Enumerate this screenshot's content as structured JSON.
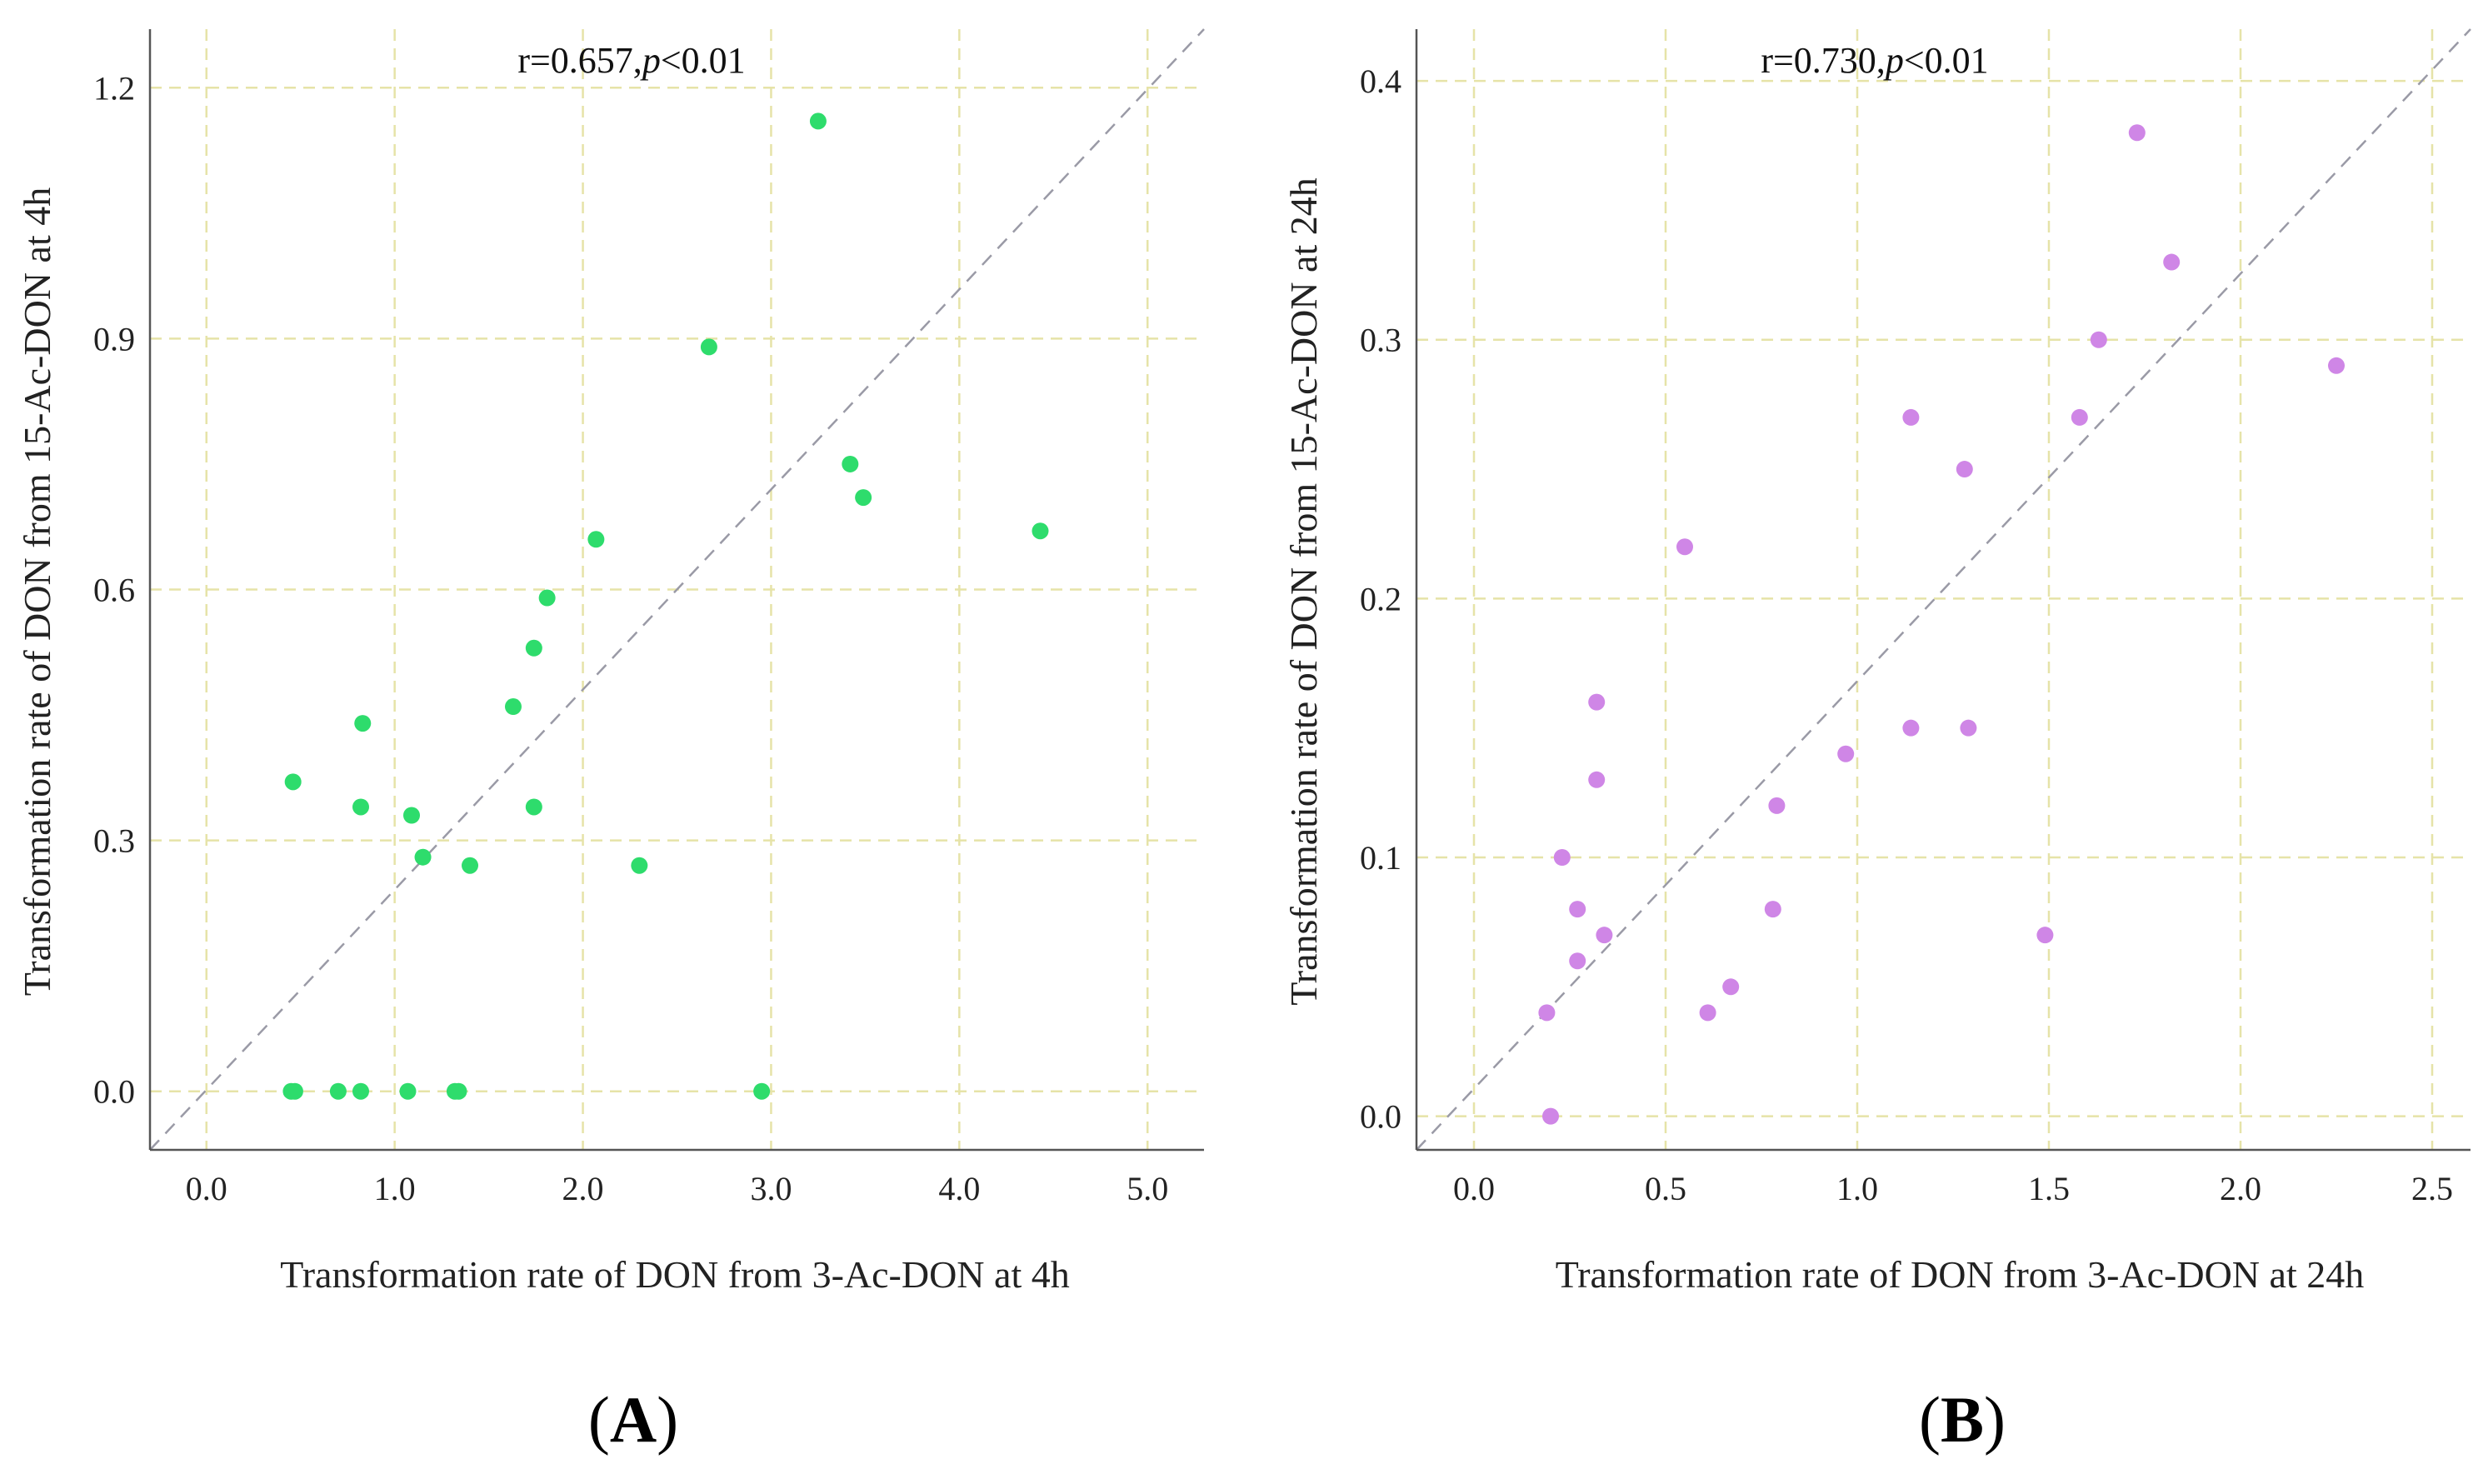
{
  "chart_data": [
    {
      "type": "scatter",
      "panel": "A",
      "annotation": {
        "r_text": "r=0.657,",
        "p_symbol": "p",
        "p_rest": "<0.01"
      },
      "xlabel": "Transformation rate of DON from 3-Ac-DON at 4h",
      "ylabel": "Transformation rate of DON from 15-Ac-DON at 4h",
      "xlim": [
        -0.3,
        5.3
      ],
      "ylim": [
        -0.07,
        1.27
      ],
      "xticks": [
        0.0,
        1.0,
        2.0,
        3.0,
        4.0,
        5.0
      ],
      "xtick_labels": [
        "0.0",
        "1.0",
        "2.0",
        "3.0",
        "4.0",
        "5.0"
      ],
      "yticks": [
        0.0,
        0.3,
        0.6,
        0.9,
        1.2
      ],
      "ytick_labels": [
        "0.0",
        "0.3",
        "0.6",
        "0.9",
        "1.2"
      ],
      "grid": true,
      "reference_line": "y = x / 4.2 (diagonal)",
      "ref_line": [
        [
          -0.3,
          -0.07
        ],
        [
          5.3,
          1.27
        ]
      ],
      "point_color": "#2edc6c",
      "series": [
        {
          "name": "samples",
          "points": [
            [
              3.25,
              1.16
            ],
            [
              2.67,
              0.89
            ],
            [
              3.42,
              0.75
            ],
            [
              3.49,
              0.71
            ],
            [
              4.43,
              0.67
            ],
            [
              2.07,
              0.66
            ],
            [
              1.81,
              0.59
            ],
            [
              1.74,
              0.53
            ],
            [
              1.63,
              0.46
            ],
            [
              0.83,
              0.44
            ],
            [
              0.46,
              0.37
            ],
            [
              0.82,
              0.34
            ],
            [
              1.74,
              0.34
            ],
            [
              1.09,
              0.33
            ],
            [
              1.15,
              0.28
            ],
            [
              1.4,
              0.27
            ],
            [
              2.3,
              0.27
            ],
            [
              0.45,
              0.0
            ],
            [
              0.47,
              0.0
            ],
            [
              0.7,
              0.0
            ],
            [
              0.82,
              0.0
            ],
            [
              1.07,
              0.0
            ],
            [
              1.32,
              0.0
            ],
            [
              1.34,
              0.0
            ],
            [
              2.95,
              0.0
            ]
          ]
        }
      ]
    },
    {
      "type": "scatter",
      "panel": "B",
      "annotation": {
        "r_text": "r=0.730,",
        "p_symbol": "p",
        "p_rest": "<0.01"
      },
      "xlabel": "Transformation rate of DON from 3-Ac-DON at 24h",
      "ylabel": "Transformation rate of DON from 15-Ac-DON at 24h",
      "xlim": [
        -0.15,
        2.6
      ],
      "ylim": [
        -0.013,
        0.42
      ],
      "xticks": [
        0.0,
        0.5,
        1.0,
        1.5,
        2.0,
        2.5
      ],
      "xtick_labels": [
        "0.0",
        "0.5",
        "1.0",
        "1.5",
        "2.0",
        "2.5"
      ],
      "yticks": [
        0.0,
        0.1,
        0.2,
        0.3,
        0.4
      ],
      "ytick_labels": [
        "0.0",
        "0.1",
        "0.2",
        "0.3",
        "0.4"
      ],
      "grid": true,
      "reference_line": "diagonal",
      "ref_line": [
        [
          -0.15,
          -0.013
        ],
        [
          2.6,
          0.42
        ]
      ],
      "point_color": "#cf86e6",
      "series": [
        {
          "name": "samples",
          "points": [
            [
              1.73,
              0.38
            ],
            [
              1.82,
              0.33
            ],
            [
              1.63,
              0.3
            ],
            [
              2.25,
              0.29
            ],
            [
              1.14,
              0.27
            ],
            [
              1.58,
              0.27
            ],
            [
              1.28,
              0.25
            ],
            [
              0.55,
              0.22
            ],
            [
              0.32,
              0.16
            ],
            [
              1.14,
              0.15
            ],
            [
              1.29,
              0.15
            ],
            [
              0.97,
              0.14
            ],
            [
              0.32,
              0.13
            ],
            [
              0.79,
              0.12
            ],
            [
              0.23,
              0.1
            ],
            [
              0.27,
              0.08
            ],
            [
              0.78,
              0.08
            ],
            [
              0.34,
              0.07
            ],
            [
              1.49,
              0.07
            ],
            [
              0.27,
              0.06
            ],
            [
              0.67,
              0.05
            ],
            [
              0.19,
              0.04
            ],
            [
              0.61,
              0.04
            ],
            [
              0.2,
              0.0
            ]
          ]
        }
      ]
    }
  ],
  "panel_labels": [
    {
      "open": "(",
      "letter": "A",
      "close": ")"
    },
    {
      "open": "(",
      "letter": "B",
      "close": ")"
    }
  ]
}
